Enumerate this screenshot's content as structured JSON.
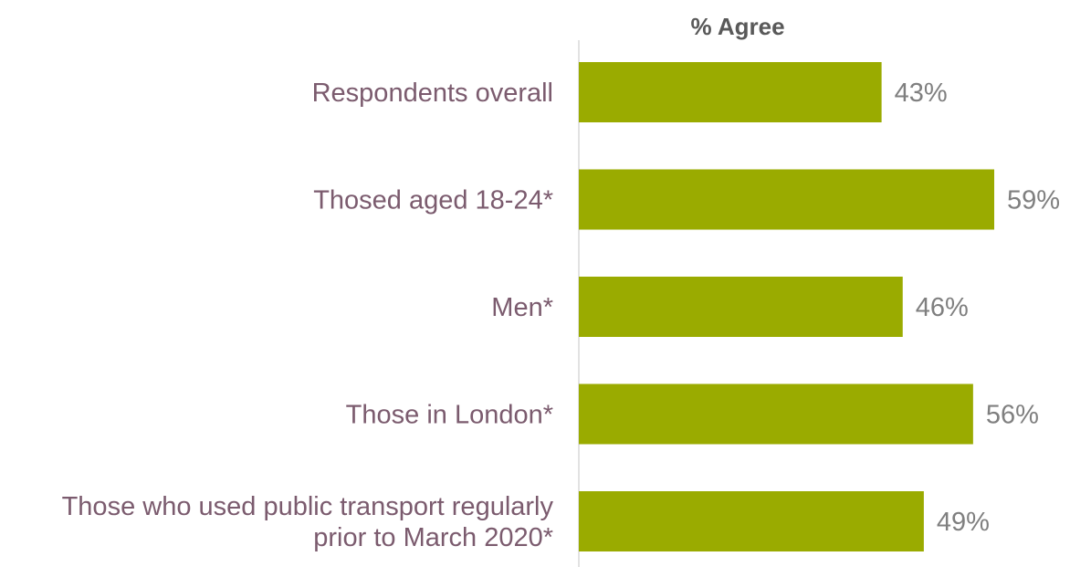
{
  "chart_data": {
    "type": "bar",
    "orientation": "horizontal",
    "title": "% Agree",
    "categories": [
      [
        "Respondents overall"
      ],
      [
        "Thosed aged 18-24*"
      ],
      [
        "Men*"
      ],
      [
        "Those in London*"
      ],
      [
        "Those who used public transport regularly",
        "prior to March 2020*"
      ]
    ],
    "values": [
      43,
      59,
      46,
      56,
      49
    ],
    "value_labels": [
      "43%",
      "59%",
      "46%",
      "56%",
      "49%"
    ],
    "xlim": [
      0,
      60
    ],
    "bar_color": "#9aab00",
    "grid": false,
    "legend": "none"
  }
}
